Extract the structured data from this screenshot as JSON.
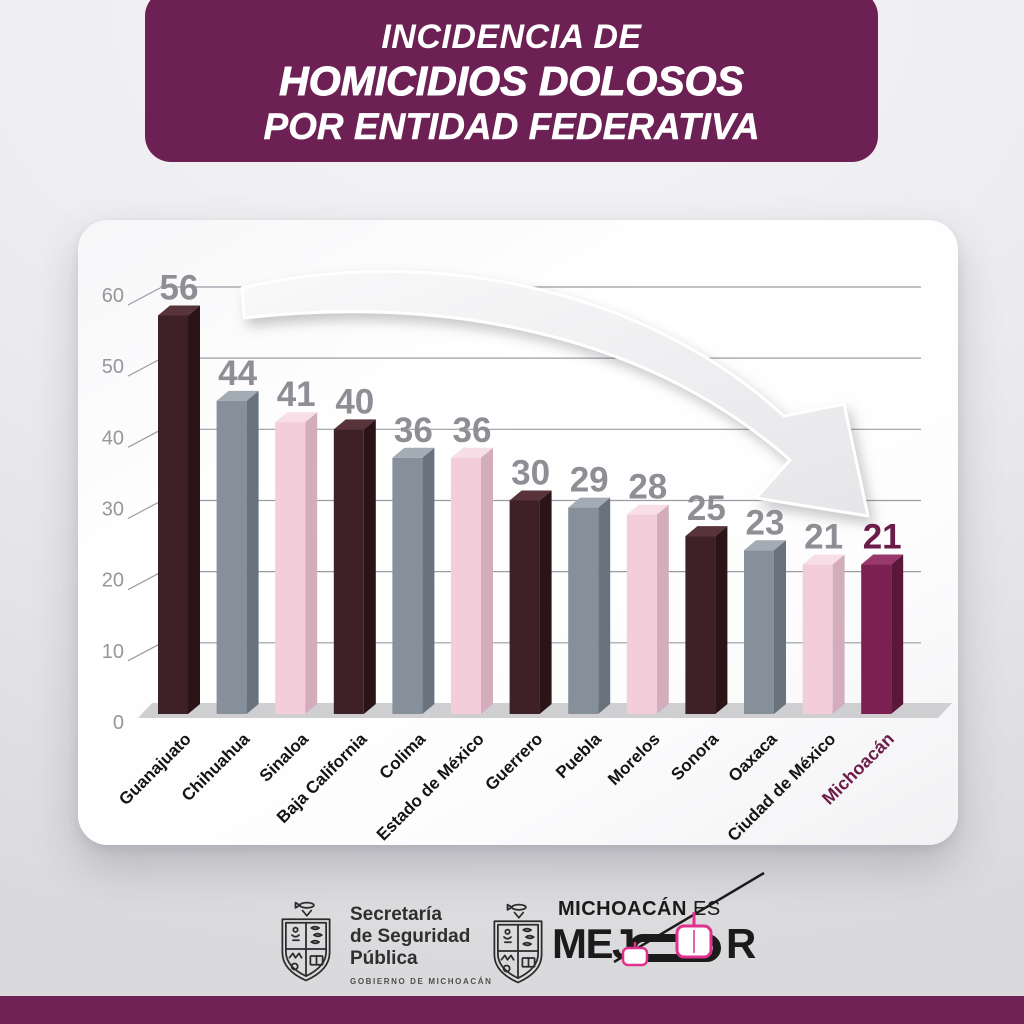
{
  "title": {
    "line1": "INCIDENCIA DE",
    "line2": "HOMICIDIOS DOLOSOS",
    "line3": "POR ENTIDAD FEDERATIVA"
  },
  "chart_data": {
    "type": "bar",
    "title": "Incidencia de homicidios dolosos por entidad federativa",
    "categories": [
      "Guanajuato",
      "Chihuahua",
      "Sinaloa",
      "Baja California",
      "Colima",
      "Estado de México",
      "Guerrero",
      "Puebla",
      "Morelos",
      "Sonora",
      "Oaxaca",
      "Ciudad de México",
      "Michoacán"
    ],
    "values": [
      56,
      44,
      41,
      40,
      36,
      36,
      30,
      29,
      28,
      25,
      23,
      21,
      21
    ],
    "bar_styles": [
      "dark",
      "gray",
      "pink",
      "dark",
      "gray",
      "pink",
      "dark",
      "gray",
      "pink",
      "dark",
      "gray",
      "pink",
      "accent"
    ],
    "highlight_category": "Michoacán",
    "xlabel": "",
    "ylabel": "",
    "ylim": [
      0,
      60
    ],
    "yticks": [
      0,
      10,
      20,
      30,
      40,
      50,
      60
    ],
    "grid": true,
    "legend": "none",
    "annotation": "large curved arrow sweeping from upper-left down to the Michoacán bar"
  },
  "colors": {
    "title_bg": "#6C2053",
    "bottom_bar": "#702156",
    "card_bg": "#FFFFFF",
    "grid": "#9B9CA2",
    "axis_label": "#96969C",
    "value_label": "#8E8E94",
    "x_label": "#141414",
    "accent_label": "#6C1C49",
    "floor": "#CFCFD2",
    "arrow_fill": "#ECECEE",
    "logo_pink": "#E0318D",
    "bars": {
      "dark": {
        "front": "#3E2127",
        "side": "#2A1418",
        "top": "#58333A"
      },
      "gray": {
        "front": "#86909B",
        "side": "#68737E",
        "top": "#A3ABB4"
      },
      "pink": {
        "front": "#F3CEDA",
        "side": "#D3ADBC",
        "top": "#F8DEE7"
      },
      "accent": {
        "front": "#7C2052",
        "side": "#5B1739",
        "top": "#99386C"
      }
    }
  },
  "footer": {
    "ssp": {
      "line1": "Secretaría",
      "line2": "de Seguridad",
      "line3": "Pública",
      "sub": "GOBIERNO DE MICHOACÁN"
    },
    "brand": {
      "top_bold": "MICHOACÁN",
      "top_light": " ES",
      "word_prefix": "MEJ",
      "word_suffix": "R",
      "word_full": "MEJOR"
    }
  }
}
